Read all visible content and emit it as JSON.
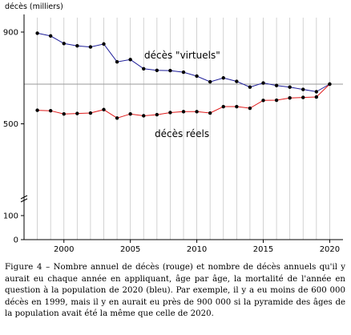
{
  "chart_data": {
    "type": "line",
    "ylabel": "décès (milliers)",
    "xlim": [
      1997,
      2021
    ],
    "ylim": [
      0,
      950
    ],
    "x_ticks": [
      2000,
      2005,
      2010,
      2015,
      2020
    ],
    "y_ticks": [
      0,
      100,
      500,
      900
    ],
    "grid": "vertical lines at each year",
    "reference_line": 673,
    "x": [
      1998,
      1999,
      2000,
      2001,
      2002,
      2003,
      2004,
      2005,
      2006,
      2007,
      2008,
      2009,
      2010,
      2011,
      2012,
      2013,
      2014,
      2015,
      2016,
      2017,
      2018,
      2019,
      2020
    ],
    "series": [
      {
        "name": "décès \"virtuels\"",
        "color": "#1f1f9a",
        "values": [
          895,
          883,
          850,
          840,
          835,
          848,
          770,
          780,
          740,
          733,
          732,
          725,
          708,
          683,
          700,
          685,
          660,
          678,
          667,
          660,
          650,
          640,
          673
        ]
      },
      {
        "name": "décès réels",
        "color": "#e01b1b",
        "values": [
          559,
          557,
          543,
          545,
          547,
          562,
          525,
          543,
          535,
          540,
          549,
          553,
          553,
          547,
          575,
          575,
          568,
          602,
          603,
          613,
          615,
          617,
          673
        ]
      }
    ]
  },
  "caption": {
    "label": "Figure 4 –",
    "text": " Nombre annuel de décès (rouge) et nombre de décès annuels qu'il y aurait eu chaque année en appliquant, âge par âge, la mortalité de l'année en question à la population de 2020 (bleu). Par exemple, il y a eu moins de 600 000 décès en 1999, mais il y en aurait eu près de 900 000 si la pyramide des âges de la population avait été la même que celle de 2020."
  }
}
